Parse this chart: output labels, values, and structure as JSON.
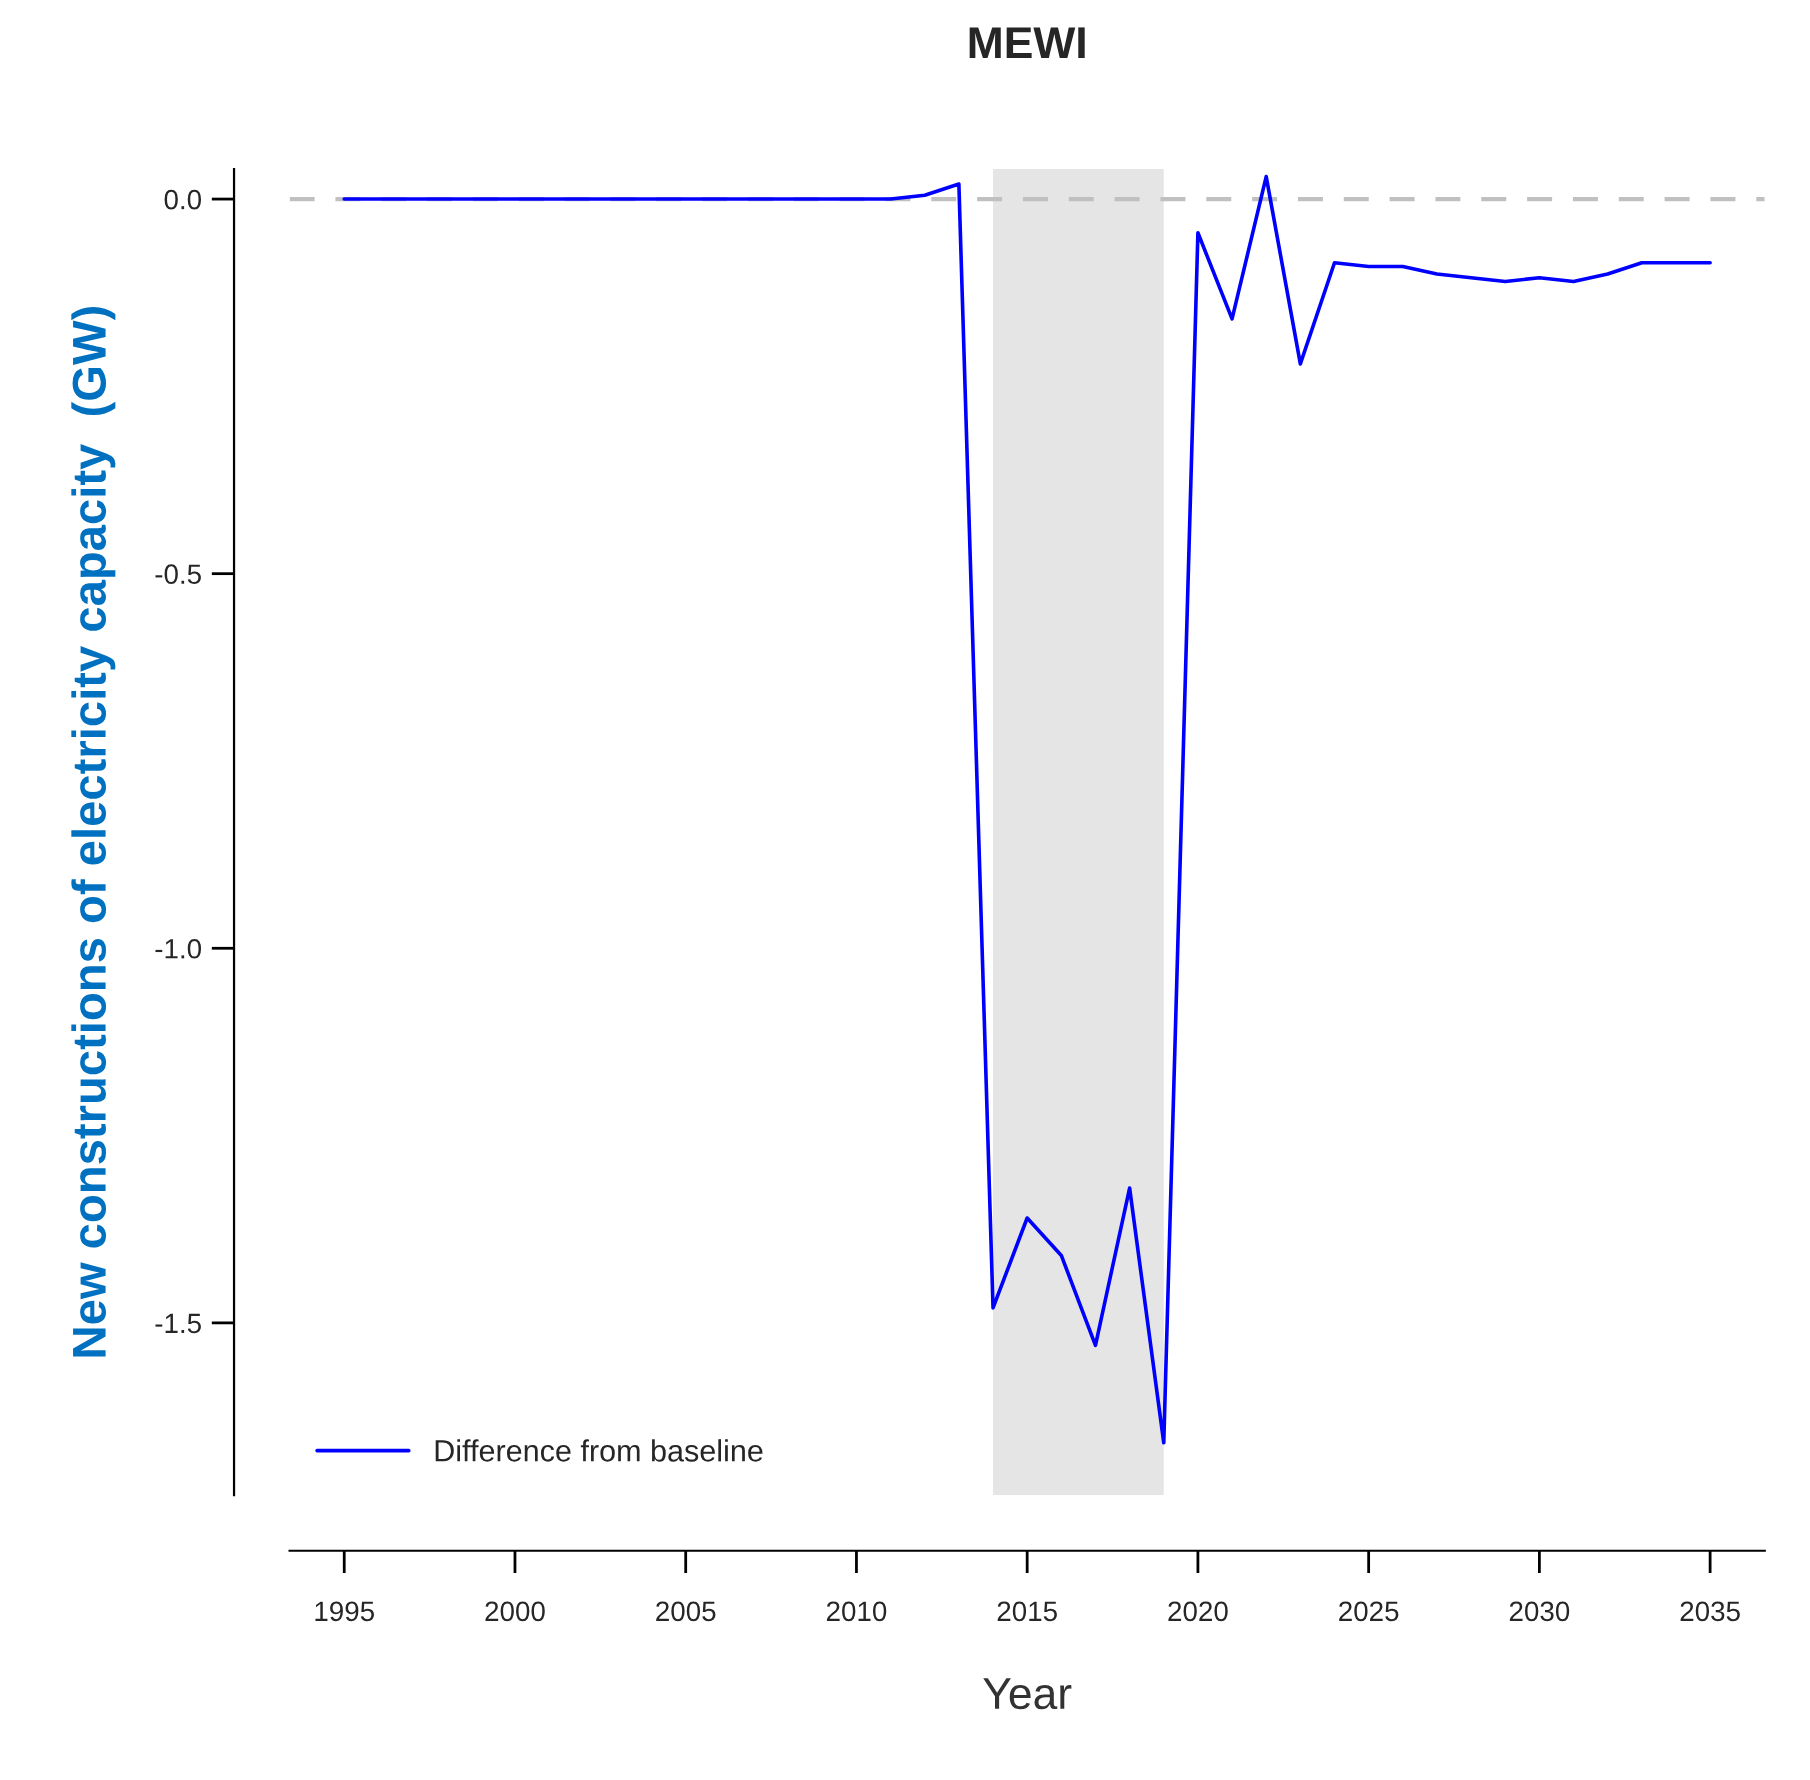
{
  "chart_data": {
    "type": "line",
    "title": "MEWI",
    "xlabel": "Year",
    "ylabel": "New constructions of electricity capacity  (GW)",
    "x": [
      1995,
      1996,
      1997,
      1998,
      1999,
      2000,
      2001,
      2002,
      2003,
      2004,
      2005,
      2006,
      2007,
      2008,
      2009,
      2010,
      2011,
      2012,
      2013,
      2014,
      2015,
      2016,
      2017,
      2018,
      2019,
      2020,
      2021,
      2022,
      2023,
      2024,
      2025,
      2026,
      2027,
      2028,
      2029,
      2030,
      2031,
      2032,
      2033,
      2034,
      2035
    ],
    "series": [
      {
        "name": "Difference from baseline",
        "color": "#0000ff",
        "values": [
          0,
          0,
          0,
          0,
          0,
          0,
          0,
          0,
          0,
          0,
          0,
          0,
          0,
          0,
          0,
          0,
          0,
          0.005,
          0.02,
          -1.48,
          -1.36,
          -1.41,
          -1.53,
          -1.32,
          -1.66,
          -0.045,
          -0.16,
          0.03,
          -0.22,
          -0.085,
          -0.09,
          -0.09,
          -0.1,
          -0.105,
          -0.11,
          -0.105,
          -0.11,
          -0.1,
          -0.085,
          -0.085,
          -0.085
        ]
      }
    ],
    "xlim": [
      1993.4,
      2036.6
    ],
    "ylim": [
      -1.73,
      0.04
    ],
    "xticks": [
      1995,
      2000,
      2005,
      2010,
      2015,
      2020,
      2025,
      2030,
      2035
    ],
    "yticks": [
      {
        "value": -1.5,
        "label": "-1.5"
      },
      {
        "value": -1.0,
        "label": "-1.0"
      },
      {
        "value": -0.5,
        "label": "-0.5"
      },
      {
        "value": 0,
        "label": "0.0"
      }
    ],
    "ref_lines": [
      {
        "axis": "y",
        "value": 0,
        "color": "#c0c0c0",
        "line_style": "dashed"
      }
    ],
    "bands": [
      {
        "axis": "x",
        "from": 2014,
        "to": 2019,
        "color": "#e5e5e5"
      }
    ],
    "legend": "bottom left",
    "grid": false
  }
}
